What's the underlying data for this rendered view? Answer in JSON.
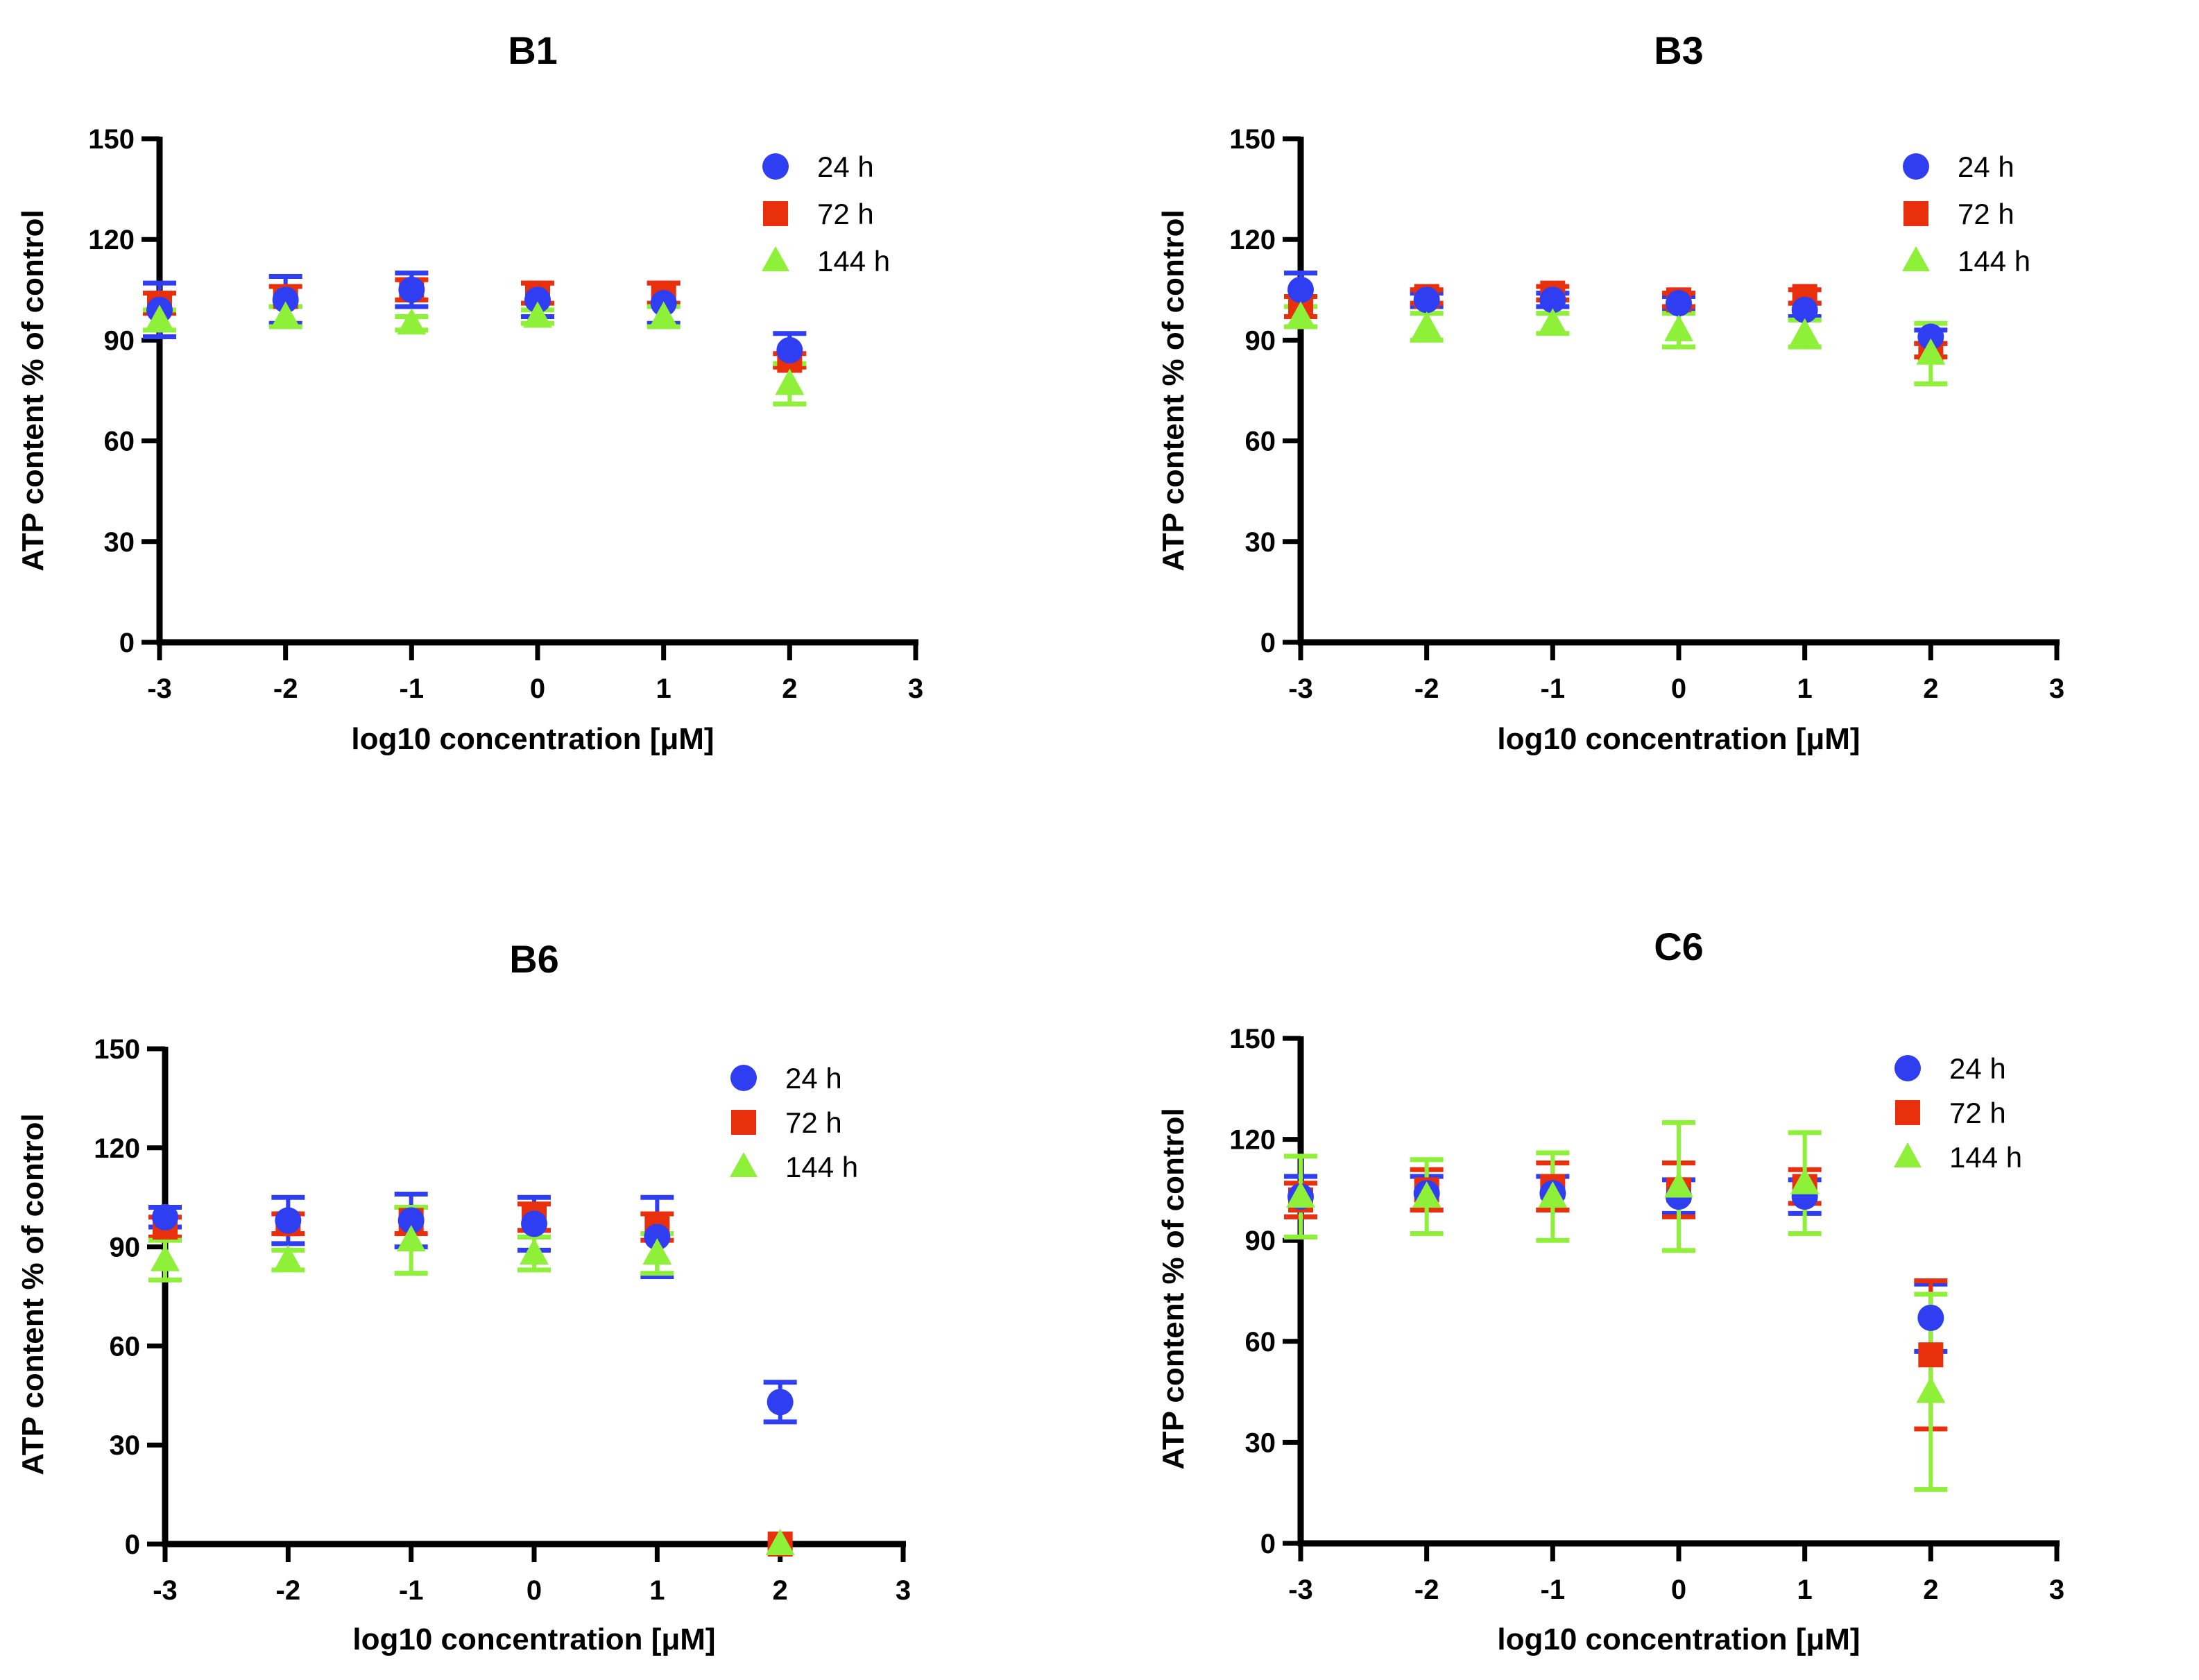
{
  "figure": {
    "background": "#ffffff",
    "series_colors": {
      "24 h": "#2f3ef0",
      "72 h": "#e8300c",
      "144 h": "#8ff03a"
    },
    "series_markers": {
      "24 h": "circle",
      "72 h": "square",
      "144 h": "triangle"
    }
  },
  "chart_data": [
    {
      "type": "scatter",
      "title": "B1",
      "xlabel": "log10 concentration [μM]",
      "ylabel": "ATP content % of control",
      "xlim": [
        -3,
        3
      ],
      "ylim": [
        0,
        150
      ],
      "xticks": [
        -3,
        -2,
        -1,
        0,
        1,
        2,
        3
      ],
      "yticks": [
        0,
        30,
        60,
        90,
        120,
        150
      ],
      "grid": false,
      "legend": "top-right",
      "x": [
        -3,
        -2,
        -1,
        0,
        1,
        2
      ],
      "series": [
        {
          "name": "24 h",
          "values": [
            99,
            102,
            105,
            102,
            101,
            87
          ],
          "errors": [
            8,
            7,
            5,
            5,
            6,
            5
          ]
        },
        {
          "name": "72 h",
          "values": [
            101,
            103,
            105,
            104,
            104,
            84
          ],
          "errors": [
            3,
            3,
            3,
            3,
            3,
            2
          ]
        },
        {
          "name": "144 h",
          "values": [
            96,
            97,
            95,
            97,
            97,
            77
          ],
          "errors": [
            3,
            3,
            2,
            2,
            3,
            6
          ]
        }
      ]
    },
    {
      "type": "scatter",
      "title": "B3",
      "xlabel": "log10 concentration [μM]",
      "ylabel": "ATP content % of control",
      "xlim": [
        -3,
        3
      ],
      "ylim": [
        0,
        150
      ],
      "xticks": [
        -3,
        -2,
        -1,
        0,
        1,
        2,
        3
      ],
      "yticks": [
        0,
        30,
        60,
        90,
        120,
        150
      ],
      "grid": false,
      "legend": "top-right",
      "x": [
        -3,
        -2,
        -1,
        0,
        1,
        2
      ],
      "series": [
        {
          "name": "24 h",
          "values": [
            105,
            102,
            102,
            101,
            99,
            91
          ],
          "errors": [
            5,
            2,
            2,
            2,
            2,
            2
          ]
        },
        {
          "name": "72 h",
          "values": [
            100,
            103,
            104,
            102,
            103,
            87
          ],
          "errors": [
            3,
            2,
            2,
            2,
            2,
            2
          ]
        },
        {
          "name": "144 h",
          "values": [
            97,
            94,
            95,
            93,
            92,
            86
          ],
          "errors": [
            3,
            4,
            3,
            5,
            4,
            9
          ]
        }
      ]
    },
    {
      "type": "scatter",
      "title": "B6",
      "xlabel": "log10 concentration [μM]",
      "ylabel": "ATP content % of control",
      "xlim": [
        -3,
        3
      ],
      "ylim": [
        0,
        150
      ],
      "xticks": [
        -3,
        -2,
        -1,
        0,
        1,
        2,
        3
      ],
      "yticks": [
        0,
        30,
        60,
        90,
        120,
        150
      ],
      "grid": false,
      "legend": "top-right",
      "x": [
        -3,
        -2,
        -1,
        0,
        1,
        2
      ],
      "series": [
        {
          "name": "24 h",
          "values": [
            99,
            98,
            98,
            97,
            93,
            43
          ],
          "errors": [
            3,
            7,
            8,
            8,
            12,
            6
          ]
        },
        {
          "name": "72 h",
          "values": [
            96,
            97,
            98,
            99,
            96,
            0
          ],
          "errors": [
            3,
            3,
            4,
            4,
            4,
            0
          ]
        },
        {
          "name": "144 h",
          "values": [
            86,
            86,
            92,
            88,
            88,
            0
          ],
          "errors": [
            6,
            3,
            10,
            5,
            6,
            0
          ]
        }
      ]
    },
    {
      "type": "scatter",
      "title": "C6",
      "xlabel": "log10 concentration [μM]",
      "ylabel": "ATP content % of control",
      "xlim": [
        -3,
        3
      ],
      "ylim": [
        0,
        150
      ],
      "xticks": [
        -3,
        -2,
        -1,
        0,
        1,
        2,
        3
      ],
      "yticks": [
        0,
        30,
        60,
        90,
        120,
        150
      ],
      "grid": false,
      "legend": "top-right",
      "x": [
        -3,
        -2,
        -1,
        0,
        1,
        2
      ],
      "series": [
        {
          "name": "24 h",
          "values": [
            103,
            104,
            104,
            103,
            103,
            67
          ],
          "errors": [
            6,
            5,
            5,
            5,
            5,
            10
          ]
        },
        {
          "name": "72 h",
          "values": [
            102,
            105,
            106,
            105,
            106,
            56
          ],
          "errors": [
            5,
            6,
            7,
            8,
            5,
            22
          ]
        },
        {
          "name": "144 h",
          "values": [
            103,
            103,
            103,
            106,
            107,
            45
          ],
          "errors": [
            12,
            11,
            13,
            19,
            15,
            29
          ]
        }
      ]
    }
  ]
}
